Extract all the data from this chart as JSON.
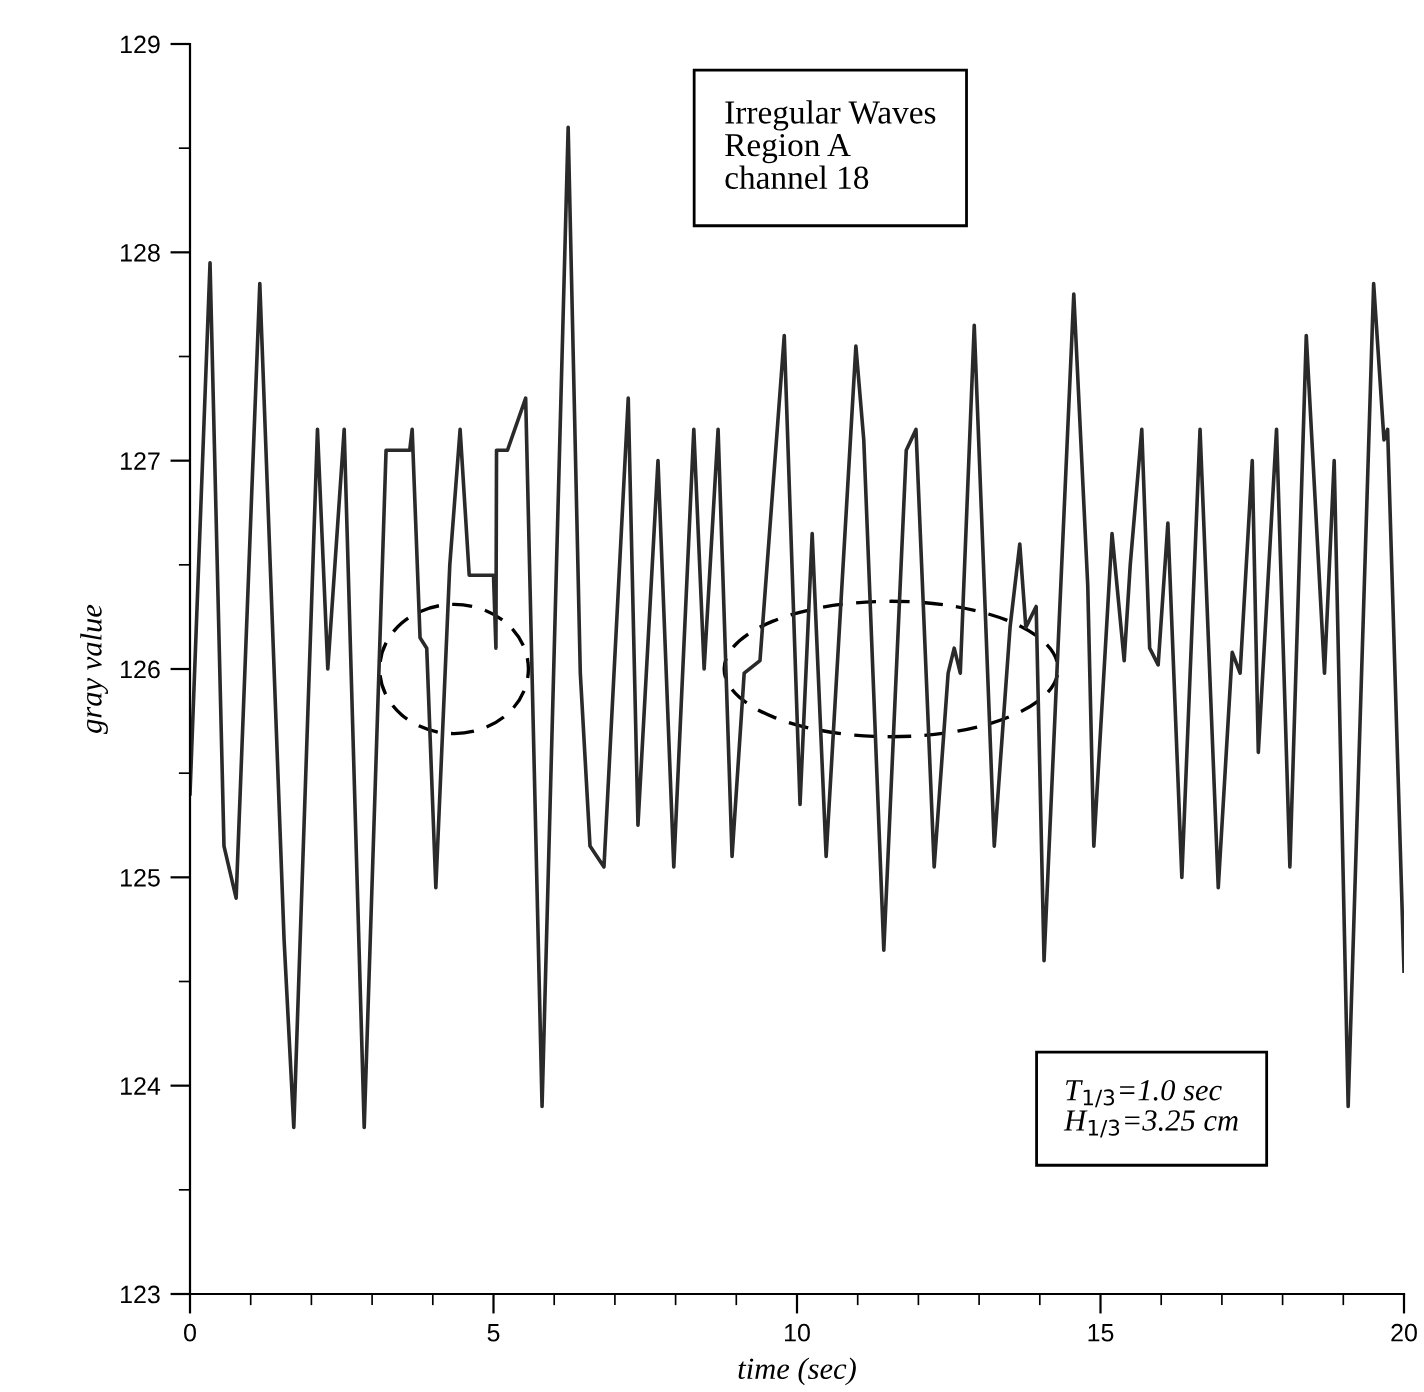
{
  "chart_data": {
    "type": "line",
    "xlabel": "time (sec)",
    "ylabel": "gray value",
    "x": [
      0.0,
      0.33,
      0.56,
      0.76,
      1.15,
      1.55,
      1.71,
      2.1,
      2.27,
      2.54,
      2.87,
      3.23,
      3.62,
      3.66,
      3.79,
      3.9,
      4.05,
      4.28,
      4.45,
      4.6,
      4.61,
      5.0,
      5.04,
      5.05,
      5.23,
      5.53,
      5.8,
      6.23,
      6.43,
      6.59,
      6.82,
      7.22,
      7.38,
      7.71,
      7.97,
      8.3,
      8.47,
      8.7,
      8.93,
      9.13,
      9.39,
      9.79,
      10.05,
      10.25,
      10.48,
      10.97,
      11.1,
      11.43,
      11.8,
      11.96,
      12.26,
      12.49,
      12.59,
      12.69,
      12.92,
      13.25,
      13.51,
      13.67,
      13.77,
      13.94,
      14.07,
      14.56,
      14.79,
      14.89,
      15.19,
      15.39,
      15.49,
      15.68,
      15.81,
      15.95,
      16.11,
      16.34,
      16.64,
      16.94,
      17.17,
      17.3,
      17.5,
      17.6,
      17.9,
      18.12,
      18.39,
      18.69,
      18.85,
      19.08,
      19.5,
      19.67,
      19.73,
      20.0
    ],
    "series": [
      {
        "color": "#2a2a2a",
        "values": [
          125.4,
          127.95,
          125.15,
          124.9,
          127.85,
          124.7,
          123.8,
          127.15,
          126.0,
          127.15,
          123.8,
          127.05,
          127.05,
          127.15,
          126.15,
          126.1,
          124.95,
          126.5,
          127.15,
          126.45,
          126.45,
          126.45,
          126.1,
          127.05,
          127.05,
          127.3,
          123.9,
          128.6,
          125.98,
          125.15,
          125.05,
          127.3,
          125.25,
          127.0,
          125.05,
          127.15,
          126.0,
          127.15,
          125.1,
          125.98,
          126.04,
          127.6,
          125.35,
          126.65,
          125.1,
          127.55,
          127.1,
          124.65,
          127.05,
          127.15,
          125.05,
          125.98,
          126.1,
          125.98,
          127.65,
          125.15,
          126.2,
          126.6,
          126.2,
          126.3,
          124.6,
          127.8,
          126.4,
          125.15,
          126.65,
          126.04,
          126.5,
          127.15,
          126.1,
          126.02,
          126.7,
          125.0,
          127.15,
          124.95,
          126.08,
          125.98,
          127.0,
          125.6,
          127.15,
          125.05,
          127.6,
          125.98,
          127.0,
          123.9,
          127.85,
          127.1,
          127.15,
          124.55
        ]
      }
    ],
    "xlim": [
      0,
      20
    ],
    "xticks": [
      0,
      5,
      10,
      15,
      20
    ],
    "ylim": [
      123,
      129
    ],
    "yticks": [
      123,
      124,
      125,
      126,
      127,
      128,
      129
    ],
    "grid": false,
    "marker": "none",
    "line_style": "solid",
    "annotations": [
      "Irregular Waves\nRegion A\nchannel 18",
      "T$_{1/3}$=1.0 sec\nH$_{1/3}$=3.25 cm"
    ]
  }
}
